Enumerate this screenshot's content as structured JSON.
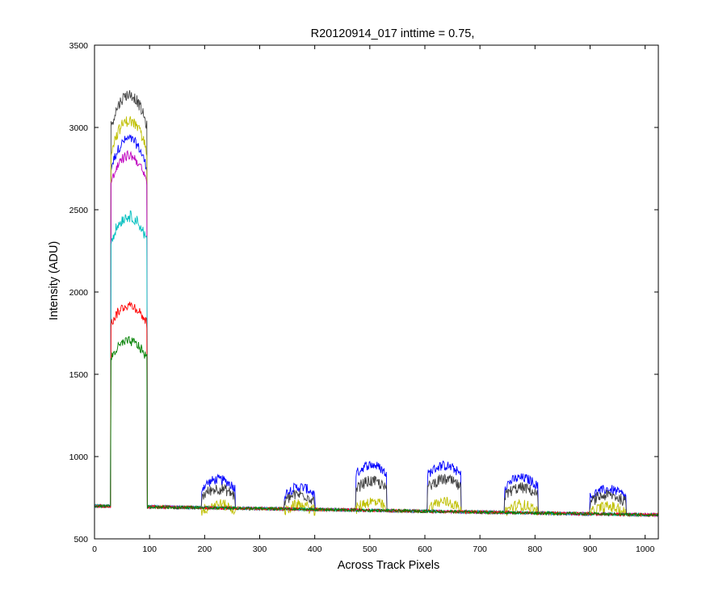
{
  "chart_data": {
    "type": "line",
    "title": "R20120914_017 inttime = 0.75,",
    "xlabel": "Across Track Pixels",
    "ylabel": "Intensity (ADU)",
    "xlim": [
      0,
      1024
    ],
    "ylim": [
      500,
      3500
    ],
    "xticks": [
      0,
      100,
      200,
      300,
      400,
      500,
      600,
      700,
      800,
      900,
      1000
    ],
    "yticks": [
      500,
      1000,
      1500,
      2000,
      2500,
      3000,
      3500
    ],
    "grid": false,
    "legend": "none",
    "noise": 18,
    "baseline": {
      "x": [
        0,
        1024
      ],
      "y": [
        700,
        645
      ]
    },
    "series": [
      {
        "color": "#0000ff",
        "noise": 30,
        "plateaus": [
          {
            "x0": 30,
            "x1": 95,
            "level": 2930
          },
          {
            "x0": 195,
            "x1": 255,
            "level": 860
          },
          {
            "x0": 345,
            "x1": 400,
            "level": 815
          },
          {
            "x0": 475,
            "x1": 530,
            "level": 950
          },
          {
            "x0": 605,
            "x1": 665,
            "level": 945
          },
          {
            "x0": 745,
            "x1": 805,
            "level": 870
          },
          {
            "x0": 900,
            "x1": 965,
            "level": 800
          }
        ]
      },
      {
        "color": "#404040",
        "noise": 35,
        "plateaus": [
          {
            "x0": 30,
            "x1": 95,
            "level": 3200
          },
          {
            "x0": 195,
            "x1": 255,
            "level": 805
          },
          {
            "x0": 345,
            "x1": 400,
            "level": 770
          },
          {
            "x0": 475,
            "x1": 530,
            "level": 850
          },
          {
            "x0": 605,
            "x1": 665,
            "level": 860
          },
          {
            "x0": 745,
            "x1": 805,
            "level": 810
          },
          {
            "x0": 900,
            "x1": 965,
            "level": 765
          }
        ]
      },
      {
        "color": "#bfbf00",
        "noise": 35,
        "plateaus": [
          {
            "x0": 30,
            "x1": 95,
            "level": 3040
          },
          {
            "x0": 195,
            "x1": 255,
            "level": 710
          },
          {
            "x0": 345,
            "x1": 400,
            "level": 705
          },
          {
            "x0": 475,
            "x1": 530,
            "level": 725
          },
          {
            "x0": 605,
            "x1": 665,
            "level": 725
          },
          {
            "x0": 745,
            "x1": 805,
            "level": 705
          },
          {
            "x0": 900,
            "x1": 965,
            "level": 695
          }
        ]
      },
      {
        "color": "#bf00bf",
        "noise": 30,
        "plateaus": [
          {
            "x0": 30,
            "x1": 95,
            "level": 2830
          }
        ]
      },
      {
        "color": "#00bfbf",
        "noise": 35,
        "plateaus": [
          {
            "x0": 30,
            "x1": 95,
            "level": 2460
          }
        ]
      },
      {
        "color": "#ff0000",
        "noise": 30,
        "plateaus": [
          {
            "x0": 30,
            "x1": 95,
            "level": 1920
          }
        ]
      },
      {
        "color": "#008000",
        "noise": 30,
        "plateaus": [
          {
            "x0": 30,
            "x1": 95,
            "level": 1700
          }
        ]
      }
    ]
  }
}
